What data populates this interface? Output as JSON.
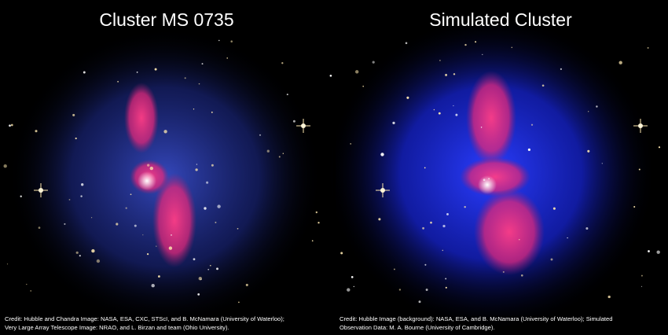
{
  "panels": [
    {
      "title": "Cluster MS 0735",
      "credit": [
        "Credit: Hubble and Chandra Image: NASA, ESA, CXC, STScI, and B. McNamara (University of Waterloo);",
        "Very Large Array Telescope Image: NRAO, and L. Birzan and team (Ohio University)."
      ]
    },
    {
      "title": "Simulated Cluster",
      "credit": [
        "Credit: Hubble Image (background): NASA, ESA, and B. McNamara (University of Waterloo); Simulated",
        "Observation Data: M. A. Bourne (University of Cambridge)."
      ]
    }
  ]
}
